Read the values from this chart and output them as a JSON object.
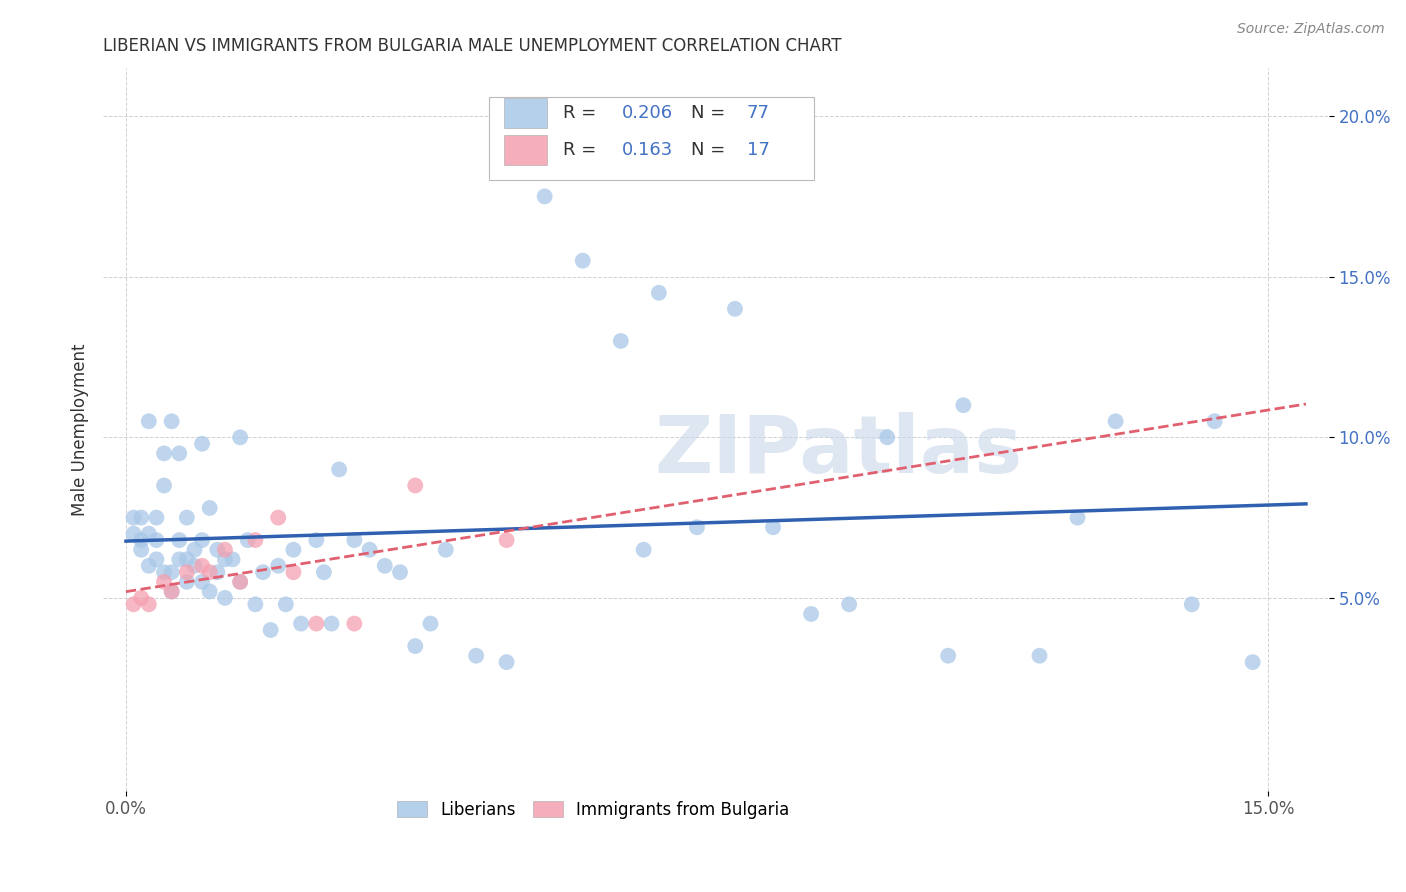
{
  "title": "LIBERIAN VS IMMIGRANTS FROM BULGARIA MALE UNEMPLOYMENT CORRELATION CHART",
  "source": "Source: ZipAtlas.com",
  "ylabel": "Male Unemployment",
  "xlim": [
    -0.003,
    0.158
  ],
  "ylim": [
    -0.01,
    0.215
  ],
  "xtick_positions": [
    0.0,
    0.15
  ],
  "xtick_labels": [
    "0.0%",
    "15.0%"
  ],
  "ytick_positions": [
    0.05,
    0.1,
    0.15,
    0.2
  ],
  "ytick_labels": [
    "5.0%",
    "10.0%",
    "15.0%",
    "20.0%"
  ],
  "liberian_R": "0.206",
  "liberian_N": "77",
  "bulgaria_R": "0.163",
  "bulgaria_N": "17",
  "liberian_color": "#a8c8e8",
  "bulgaria_color": "#f4a0b0",
  "liberian_line_color": "#3060b0",
  "bulgaria_line_color": "#e06070",
  "watermark": "ZIPatlas",
  "watermark_color": "#c8d8e8",
  "lib_x": [
    0.001,
    0.001,
    0.002,
    0.002,
    0.002,
    0.003,
    0.003,
    0.003,
    0.004,
    0.004,
    0.004,
    0.005,
    0.005,
    0.005,
    0.006,
    0.006,
    0.006,
    0.007,
    0.007,
    0.007,
    0.008,
    0.008,
    0.008,
    0.009,
    0.009,
    0.01,
    0.01,
    0.01,
    0.011,
    0.011,
    0.012,
    0.012,
    0.013,
    0.013,
    0.014,
    0.015,
    0.015,
    0.016,
    0.017,
    0.018,
    0.019,
    0.02,
    0.021,
    0.022,
    0.023,
    0.025,
    0.026,
    0.027,
    0.028,
    0.03,
    0.032,
    0.034,
    0.036,
    0.038,
    0.04,
    0.042,
    0.046,
    0.05,
    0.055,
    0.06,
    0.065,
    0.068,
    0.07,
    0.075,
    0.08,
    0.085,
    0.09,
    0.095,
    0.1,
    0.108,
    0.11,
    0.12,
    0.125,
    0.13,
    0.14,
    0.143,
    0.148
  ],
  "lib_y": [
    0.07,
    0.075,
    0.068,
    0.075,
    0.065,
    0.105,
    0.07,
    0.06,
    0.075,
    0.068,
    0.062,
    0.095,
    0.085,
    0.058,
    0.105,
    0.058,
    0.052,
    0.095,
    0.068,
    0.062,
    0.075,
    0.062,
    0.055,
    0.065,
    0.06,
    0.098,
    0.068,
    0.055,
    0.078,
    0.052,
    0.065,
    0.058,
    0.062,
    0.05,
    0.062,
    0.1,
    0.055,
    0.068,
    0.048,
    0.058,
    0.04,
    0.06,
    0.048,
    0.065,
    0.042,
    0.068,
    0.058,
    0.042,
    0.09,
    0.068,
    0.065,
    0.06,
    0.058,
    0.035,
    0.042,
    0.065,
    0.032,
    0.03,
    0.175,
    0.155,
    0.13,
    0.065,
    0.145,
    0.072,
    0.14,
    0.072,
    0.045,
    0.048,
    0.1,
    0.032,
    0.11,
    0.032,
    0.075,
    0.105,
    0.048,
    0.105,
    0.03
  ],
  "bul_x": [
    0.001,
    0.002,
    0.003,
    0.005,
    0.006,
    0.008,
    0.01,
    0.011,
    0.013,
    0.015,
    0.017,
    0.02,
    0.022,
    0.025,
    0.03,
    0.038,
    0.05
  ],
  "bul_y": [
    0.048,
    0.05,
    0.048,
    0.055,
    0.052,
    0.058,
    0.06,
    0.058,
    0.065,
    0.055,
    0.068,
    0.075,
    0.058,
    0.042,
    0.042,
    0.085,
    0.068
  ]
}
